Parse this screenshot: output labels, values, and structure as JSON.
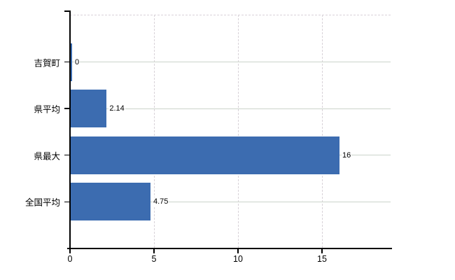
{
  "chart_data": {
    "type": "bar",
    "orientation": "horizontal",
    "title": "",
    "xlabel": "",
    "ylabel": "",
    "categories": [
      "吉賀町",
      "県平均",
      "県最大",
      "全国平均"
    ],
    "values": [
      0,
      2.14,
      16,
      4.75
    ],
    "value_labels": [
      "0",
      "2.14",
      "16",
      "4.75"
    ],
    "x_ticks": [
      0,
      5,
      10,
      15
    ],
    "x_tick_labels": [
      "0",
      "5",
      "10",
      "15"
    ],
    "xlim": [
      0,
      19.17
    ],
    "grid": true,
    "legend_position": "none",
    "colors": {
      "bar": "#3c6cb0",
      "axis": "#000000",
      "row_gridline": "#ccd4cb",
      "column_gridline": "#d8d2d8",
      "top_border": "#d8d2d8",
      "text": "#000000",
      "background": "#ffffff"
    }
  }
}
